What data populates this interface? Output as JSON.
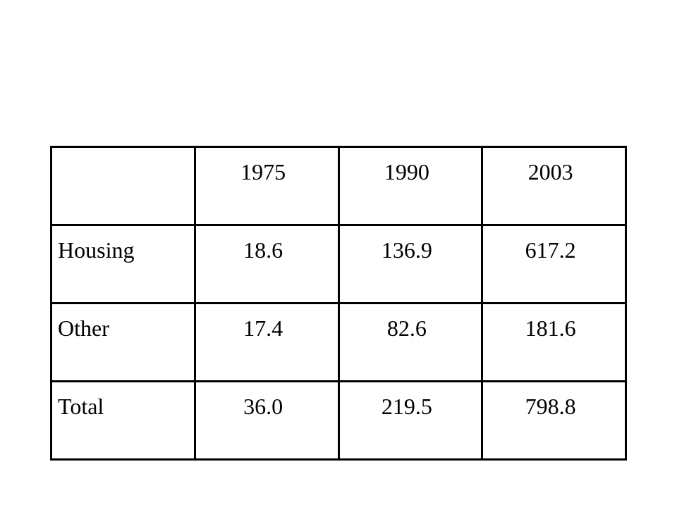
{
  "table": {
    "header": [
      "",
      "1975",
      "1990",
      "2003"
    ],
    "rows": [
      {
        "label": "Housing",
        "values": [
          "18.6",
          "136.9",
          "617.2"
        ]
      },
      {
        "label": "Other",
        "values": [
          "17.4",
          "82.6",
          "181.6"
        ]
      },
      {
        "label": "Total",
        "values": [
          "36.0",
          "219.5",
          "798.8"
        ]
      }
    ]
  }
}
